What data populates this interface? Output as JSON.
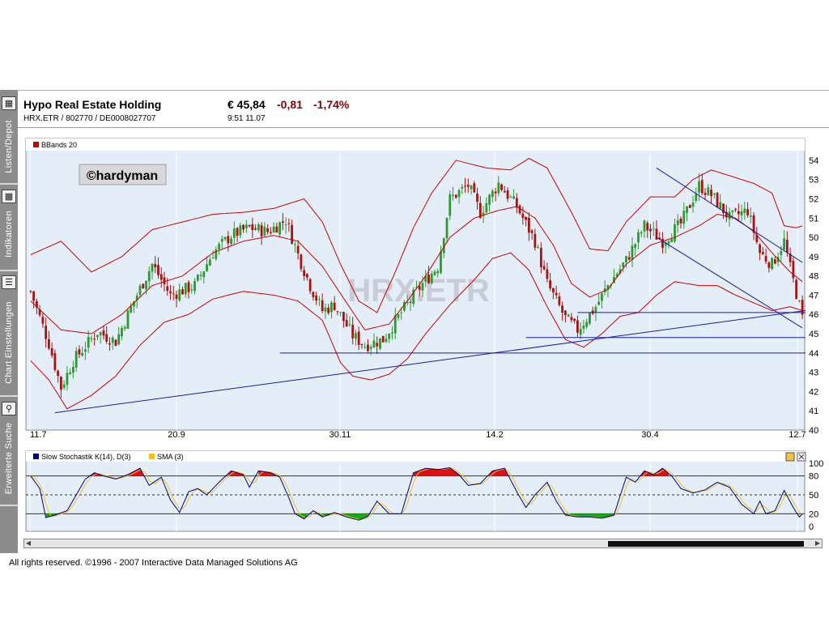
{
  "sidebar": {
    "items": [
      {
        "label": "Listen/Depot",
        "icon": "folder-icon"
      },
      {
        "label": "Indikatoren",
        "icon": "chart-bars-icon"
      },
      {
        "label": "Chart Einstellungen",
        "icon": "list-icon"
      },
      {
        "label": "Erweiterte Suche",
        "icon": "search-icon"
      }
    ]
  },
  "header": {
    "name": "Hypo Real Estate Holding",
    "identifiers": "HRX.ETR  /  802770  /  DE0008027707",
    "price": "€ 45,84",
    "change": "-0,81",
    "change_pct": "-1,74%",
    "time": "9:51    11.07"
  },
  "chart_data": [
    {
      "type": "candlestick",
      "watermark": "HRX.ETR",
      "stamp": "©hardyman",
      "legend": [
        {
          "name": "BBands 20",
          "color": "#cc0000"
        }
      ],
      "ylim": [
        40,
        54.5
      ],
      "yticks": [
        40,
        41,
        42,
        43,
        44,
        45,
        46,
        47,
        48,
        49,
        50,
        51,
        52,
        53,
        54
      ],
      "xticks": [
        "11.7",
        "20.9",
        "30.11",
        "14.2",
        "30.4",
        "12.7"
      ],
      "bar_count": 255,
      "close_anchors": [
        [
          0,
          47.2
        ],
        [
          6,
          44.5
        ],
        [
          10,
          42.2
        ],
        [
          14,
          43.6
        ],
        [
          22,
          45.1
        ],
        [
          28,
          44.6
        ],
        [
          34,
          46.7
        ],
        [
          40,
          48.6
        ],
        [
          46,
          47.0
        ],
        [
          54,
          47.5
        ],
        [
          60,
          49.2
        ],
        [
          66,
          50.1
        ],
        [
          72,
          50.5
        ],
        [
          78,
          50.3
        ],
        [
          84,
          50.9
        ],
        [
          88,
          49.1
        ],
        [
          92,
          47.5
        ],
        [
          96,
          46.2
        ],
        [
          100,
          46.5
        ],
        [
          106,
          44.9
        ],
        [
          110,
          44.4
        ],
        [
          116,
          44.7
        ],
        [
          122,
          46.1
        ],
        [
          128,
          47.4
        ],
        [
          134,
          48.5
        ],
        [
          138,
          52.0
        ],
        [
          144,
          52.7
        ],
        [
          148,
          51.3
        ],
        [
          154,
          52.8
        ],
        [
          160,
          51.6
        ],
        [
          166,
          49.8
        ],
        [
          170,
          47.6
        ],
        [
          176,
          45.8
        ],
        [
          180,
          45.2
        ],
        [
          186,
          46.4
        ],
        [
          190,
          47.5
        ],
        [
          196,
          48.8
        ],
        [
          202,
          50.6
        ],
        [
          208,
          49.8
        ],
        [
          214,
          50.7
        ],
        [
          220,
          52.7
        ],
        [
          224,
          52.2
        ],
        [
          230,
          51.0
        ],
        [
          236,
          51.4
        ],
        [
          240,
          49.2
        ],
        [
          244,
          48.6
        ],
        [
          248,
          49.8
        ],
        [
          250,
          48.4
        ],
        [
          254,
          45.8
        ]
      ],
      "bollinger_upper": [
        [
          0,
          49.1
        ],
        [
          10,
          49.8
        ],
        [
          20,
          48.2
        ],
        [
          30,
          49.0
        ],
        [
          40,
          50.4
        ],
        [
          50,
          50.8
        ],
        [
          60,
          51.2
        ],
        [
          70,
          51.3
        ],
        [
          80,
          51.5
        ],
        [
          90,
          52.0
        ],
        [
          96,
          50.8
        ],
        [
          102,
          48.6
        ],
        [
          108,
          46.7
        ],
        [
          114,
          46.1
        ],
        [
          120,
          48.2
        ],
        [
          126,
          50.5
        ],
        [
          132,
          52.3
        ],
        [
          140,
          54.0
        ],
        [
          150,
          53.6
        ],
        [
          158,
          53.5
        ],
        [
          164,
          54.1
        ],
        [
          170,
          53.6
        ],
        [
          178,
          51.3
        ],
        [
          184,
          49.4
        ],
        [
          190,
          49.3
        ],
        [
          196,
          50.8
        ],
        [
          204,
          52.1
        ],
        [
          212,
          52.1
        ],
        [
          218,
          53.0
        ],
        [
          224,
          53.5
        ],
        [
          232,
          53.1
        ],
        [
          238,
          52.8
        ],
        [
          244,
          52.3
        ],
        [
          248,
          50.6
        ],
        [
          252,
          50.5
        ],
        [
          254,
          50.6
        ]
      ],
      "bollinger_middle": [
        [
          0,
          46.7
        ],
        [
          10,
          45.2
        ],
        [
          20,
          45.0
        ],
        [
          30,
          46.0
        ],
        [
          40,
          47.5
        ],
        [
          50,
          48.0
        ],
        [
          60,
          49.2
        ],
        [
          70,
          49.8
        ],
        [
          80,
          50.1
        ],
        [
          88,
          49.8
        ],
        [
          96,
          48.5
        ],
        [
          104,
          46.6
        ],
        [
          110,
          45.2
        ],
        [
          118,
          45.5
        ],
        [
          124,
          46.7
        ],
        [
          130,
          48.0
        ],
        [
          138,
          50.0
        ],
        [
          146,
          51.0
        ],
        [
          154,
          51.4
        ],
        [
          160,
          51.6
        ],
        [
          166,
          51.0
        ],
        [
          172,
          49.6
        ],
        [
          178,
          47.6
        ],
        [
          184,
          46.9
        ],
        [
          190,
          47.3
        ],
        [
          196,
          48.6
        ],
        [
          204,
          49.6
        ],
        [
          212,
          50.0
        ],
        [
          220,
          50.6
        ],
        [
          226,
          51.2
        ],
        [
          232,
          51.0
        ],
        [
          238,
          50.3
        ],
        [
          244,
          49.2
        ],
        [
          250,
          48.2
        ],
        [
          254,
          47.7
        ]
      ],
      "bollinger_lower": [
        [
          0,
          43.6
        ],
        [
          6,
          42.6
        ],
        [
          12,
          41.1
        ],
        [
          20,
          41.8
        ],
        [
          28,
          42.8
        ],
        [
          36,
          44.4
        ],
        [
          44,
          45.6
        ],
        [
          52,
          46.0
        ],
        [
          60,
          46.8
        ],
        [
          70,
          47.2
        ],
        [
          80,
          47.0
        ],
        [
          88,
          46.7
        ],
        [
          96,
          45.7
        ],
        [
          102,
          43.5
        ],
        [
          106,
          42.8
        ],
        [
          112,
          42.6
        ],
        [
          118,
          42.9
        ],
        [
          124,
          43.7
        ],
        [
          130,
          45.0
        ],
        [
          138,
          46.5
        ],
        [
          146,
          47.8
        ],
        [
          152,
          48.9
        ],
        [
          158,
          49.2
        ],
        [
          164,
          48.3
        ],
        [
          170,
          46.4
        ],
        [
          176,
          44.7
        ],
        [
          182,
          44.3
        ],
        [
          188,
          45.0
        ],
        [
          194,
          45.9
        ],
        [
          200,
          46.1
        ],
        [
          206,
          47.0
        ],
        [
          212,
          47.7
        ],
        [
          220,
          47.5
        ],
        [
          226,
          47.5
        ],
        [
          232,
          47.0
        ],
        [
          238,
          46.6
        ],
        [
          244,
          46.2
        ],
        [
          250,
          46.4
        ],
        [
          254,
          46.2
        ]
      ],
      "trendlines": [
        {
          "from": [
            8,
            40.9
          ],
          "to": [
            255,
            46.2
          ]
        },
        {
          "from": [
            206,
            53.6
          ],
          "to": [
            254,
            48.7
          ]
        },
        {
          "from": [
            206,
            50.0
          ],
          "to": [
            254,
            45.3
          ]
        },
        {
          "from": [
            82,
            44.0
          ],
          "to": [
            255,
            44.0
          ]
        },
        {
          "from": [
            163,
            44.8
          ],
          "to": [
            255,
            44.8
          ]
        },
        {
          "from": [
            180,
            46.1
          ],
          "to": [
            255,
            46.1
          ]
        }
      ]
    },
    {
      "type": "line",
      "legend": [
        {
          "name": "Slow Stochastik K(14), D(3)",
          "color": "#000080"
        },
        {
          "name": "SMA (3)",
          "color": "#f0c020"
        }
      ],
      "ylim": [
        0,
        100
      ],
      "yticks": [
        0,
        20,
        50,
        80,
        100
      ],
      "reference_lines": [
        20,
        50,
        80
      ],
      "k_anchors": [
        [
          0,
          80
        ],
        [
          3,
          60
        ],
        [
          5,
          14
        ],
        [
          8,
          18
        ],
        [
          12,
          25
        ],
        [
          15,
          50
        ],
        [
          18,
          75
        ],
        [
          21,
          85
        ],
        [
          24,
          80
        ],
        [
          28,
          75
        ],
        [
          32,
          82
        ],
        [
          36,
          92
        ],
        [
          39,
          65
        ],
        [
          43,
          78
        ],
        [
          46,
          42
        ],
        [
          49,
          22
        ],
        [
          52,
          55
        ],
        [
          55,
          60
        ],
        [
          58,
          50
        ],
        [
          62,
          70
        ],
        [
          66,
          88
        ],
        [
          70,
          82
        ],
        [
          72,
          62
        ],
        [
          75,
          88
        ],
        [
          79,
          85
        ],
        [
          82,
          78
        ],
        [
          85,
          45
        ],
        [
          87,
          20
        ],
        [
          90,
          12
        ],
        [
          93,
          25
        ],
        [
          96,
          15
        ],
        [
          100,
          22
        ],
        [
          104,
          15
        ],
        [
          108,
          10
        ],
        [
          111,
          16
        ],
        [
          114,
          40
        ],
        [
          118,
          20
        ],
        [
          122,
          20
        ],
        [
          126,
          85
        ],
        [
          130,
          92
        ],
        [
          134,
          90
        ],
        [
          138,
          93
        ],
        [
          141,
          82
        ],
        [
          144,
          65
        ],
        [
          148,
          68
        ],
        [
          152,
          88
        ],
        [
          156,
          92
        ],
        [
          160,
          55
        ],
        [
          163,
          30
        ],
        [
          166,
          50
        ],
        [
          170,
          70
        ],
        [
          173,
          40
        ],
        [
          176,
          18
        ],
        [
          180,
          15
        ],
        [
          184,
          15
        ],
        [
          188,
          13
        ],
        [
          192,
          18
        ],
        [
          196,
          78
        ],
        [
          199,
          70
        ],
        [
          202,
          88
        ],
        [
          205,
          82
        ],
        [
          208,
          92
        ],
        [
          211,
          80
        ],
        [
          214,
          60
        ],
        [
          218,
          53
        ],
        [
          222,
          58
        ],
        [
          226,
          70
        ],
        [
          230,
          62
        ],
        [
          234,
          35
        ],
        [
          238,
          20
        ],
        [
          240,
          40
        ],
        [
          242,
          20
        ],
        [
          245,
          25
        ],
        [
          248,
          57
        ],
        [
          251,
          30
        ],
        [
          253,
          15
        ],
        [
          254,
          20
        ],
        [
          255,
          22
        ]
      ]
    }
  ],
  "footer": "All rights reserved. ©1996 - 2007 Interactive Data Managed Solutions AG"
}
